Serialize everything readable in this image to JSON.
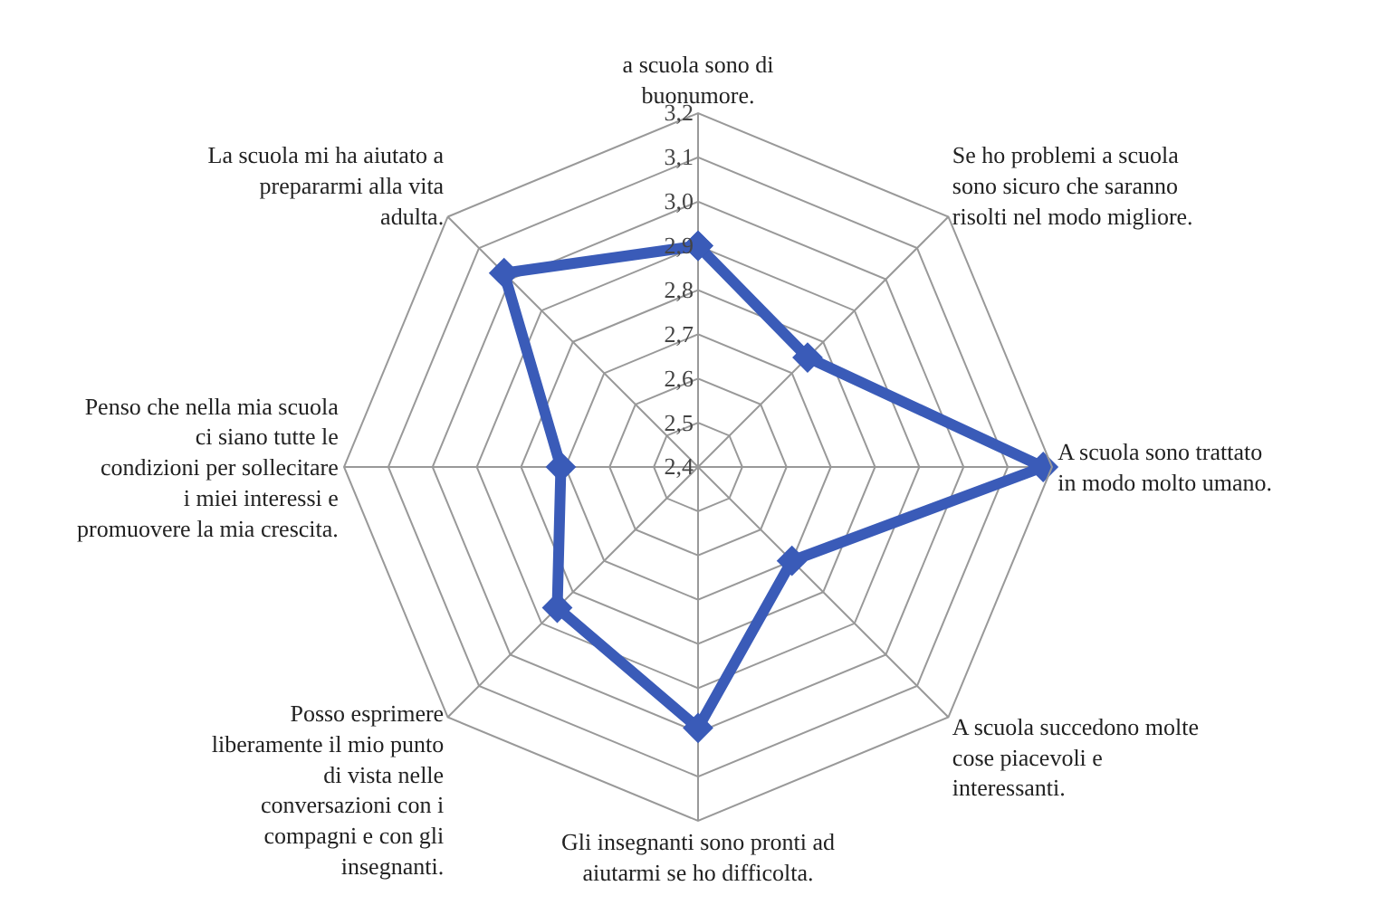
{
  "chart_data": {
    "type": "radar",
    "categories": [
      "a scuola sono di buonumore.",
      "Se ho problemi a scuola sono sicuro che saranno risolti nel modo migliore.",
      "A scuola sono trattato in modo molto umano.",
      "A scuola succedono molte cose piacevoli e interessanti.",
      "Gli insegnanti sono pronti ad aiutarmi se ho difficolta.",
      "Posso esprimere liberamente il mio punto di vista nelle conversazioni con i compagni e con gli insegnanti.",
      "Penso che nella mia scuola ci siano tutte le condizioni per sollecitare i miei interessi e promuovere la mia crescita.",
      "La scuola mi ha aiutato a prepararmi alla vita adulta."
    ],
    "series": [
      {
        "color": "#3a5bb8",
        "values": [
          2.9,
          2.75,
          3.18,
          2.7,
          2.99,
          2.85,
          2.71,
          3.02
        ]
      }
    ],
    "ylim": [
      2.4,
      3.2
    ],
    "yticks": [
      {
        "value": 2.4,
        "label": "2,4"
      },
      {
        "value": 2.5,
        "label": "2,5"
      },
      {
        "value": 2.6,
        "label": "2,6"
      },
      {
        "value": 2.7,
        "label": "2,7"
      },
      {
        "value": 2.8,
        "label": "2,8"
      },
      {
        "value": 2.9,
        "label": "2,9"
      },
      {
        "value": 3.0,
        "label": "3,0"
      },
      {
        "value": 3.1,
        "label": "3,1"
      },
      {
        "value": 3.2,
        "label": "3,2"
      }
    ],
    "marker": "diamond",
    "line_style": "solid",
    "grid": true
  }
}
